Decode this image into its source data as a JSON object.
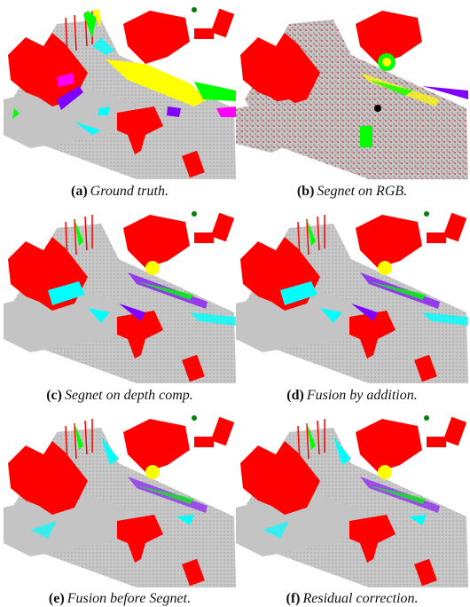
{
  "figure": {
    "panels": [
      {
        "id": "a",
        "label": "(a)",
        "caption": "Ground truth."
      },
      {
        "id": "b",
        "label": "(b)",
        "caption": "Segnet on RGB."
      },
      {
        "id": "c",
        "label": "(c)",
        "caption": "Segnet on depth comp."
      },
      {
        "id": "d",
        "label": "(d)",
        "caption": "Fusion by addition."
      },
      {
        "id": "e",
        "label": "(e)",
        "caption": "Fusion before Segnet."
      },
      {
        "id": "f",
        "label": "(f)",
        "caption": "Residual correction."
      }
    ],
    "colors": {
      "building": "#ff0000",
      "road": "#c0c0c0",
      "vegetation_yellow": "#ffff00",
      "vegetation_green": "#00ff00",
      "car_cyan": "#00ffff",
      "pole_purple": "#8000ff",
      "magenta": "#ff00ff",
      "dark_green": "#008000"
    }
  }
}
